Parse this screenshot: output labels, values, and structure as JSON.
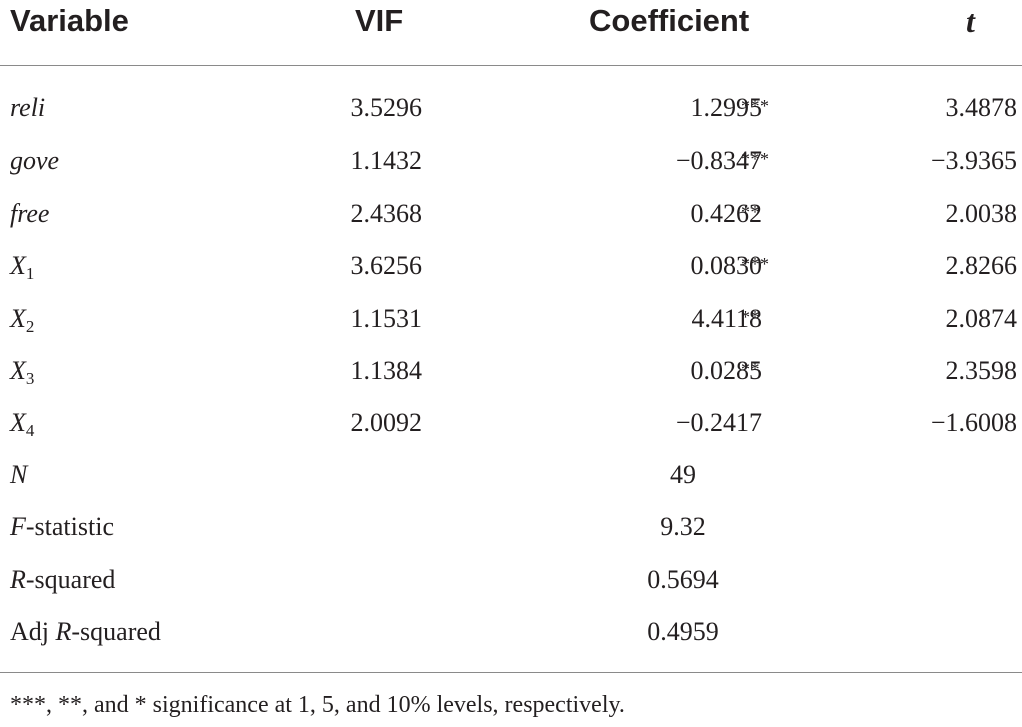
{
  "table": {
    "headers": {
      "variable": "Variable",
      "vif": "VIF",
      "coefficient": "Coefficient",
      "t": "t"
    },
    "rows": [
      {
        "label": "reli",
        "vif": "3.5296",
        "coef": "1.2995",
        "stars": "***",
        "t": "3.4878"
      },
      {
        "label": "gove",
        "vif": "1.1432",
        "coef": "−0.8347",
        "stars": "***",
        "t": "−3.9365"
      },
      {
        "label": "free",
        "vif": "2.4368",
        "coef": "0.4262",
        "stars": "**",
        "t": "2.0038"
      },
      {
        "label_base": "X",
        "label_sub": "1",
        "vif": "3.6256",
        "coef": "0.0830",
        "stars": "***",
        "t": "2.8266"
      },
      {
        "label_base": "X",
        "label_sub": "2",
        "vif": "1.1531",
        "coef": "4.4118",
        "stars": "**",
        "t": "2.0874"
      },
      {
        "label_base": "X",
        "label_sub": "3",
        "vif": "1.1384",
        "coef": "0.0285",
        "stars": "**",
        "t": "2.3598"
      },
      {
        "label_base": "X",
        "label_sub": "4",
        "vif": "2.0092",
        "coef": "−0.2417",
        "stars": "",
        "t": "−1.6008"
      }
    ],
    "stats": {
      "n": {
        "label": "N",
        "value": "49"
      },
      "f": {
        "label_italic": "F",
        "label_rest": "-statistic",
        "value": "9.32"
      },
      "r2": {
        "label_italic": "R",
        "label_rest": "-squared",
        "value": "0.5694"
      },
      "adj_r2": {
        "label_pre": "Adj ",
        "label_italic": "R",
        "label_rest": "-squared",
        "value": "0.4959"
      }
    }
  },
  "footnote": "***, **, and * significance at 1, 5, and 10% levels, respectively."
}
